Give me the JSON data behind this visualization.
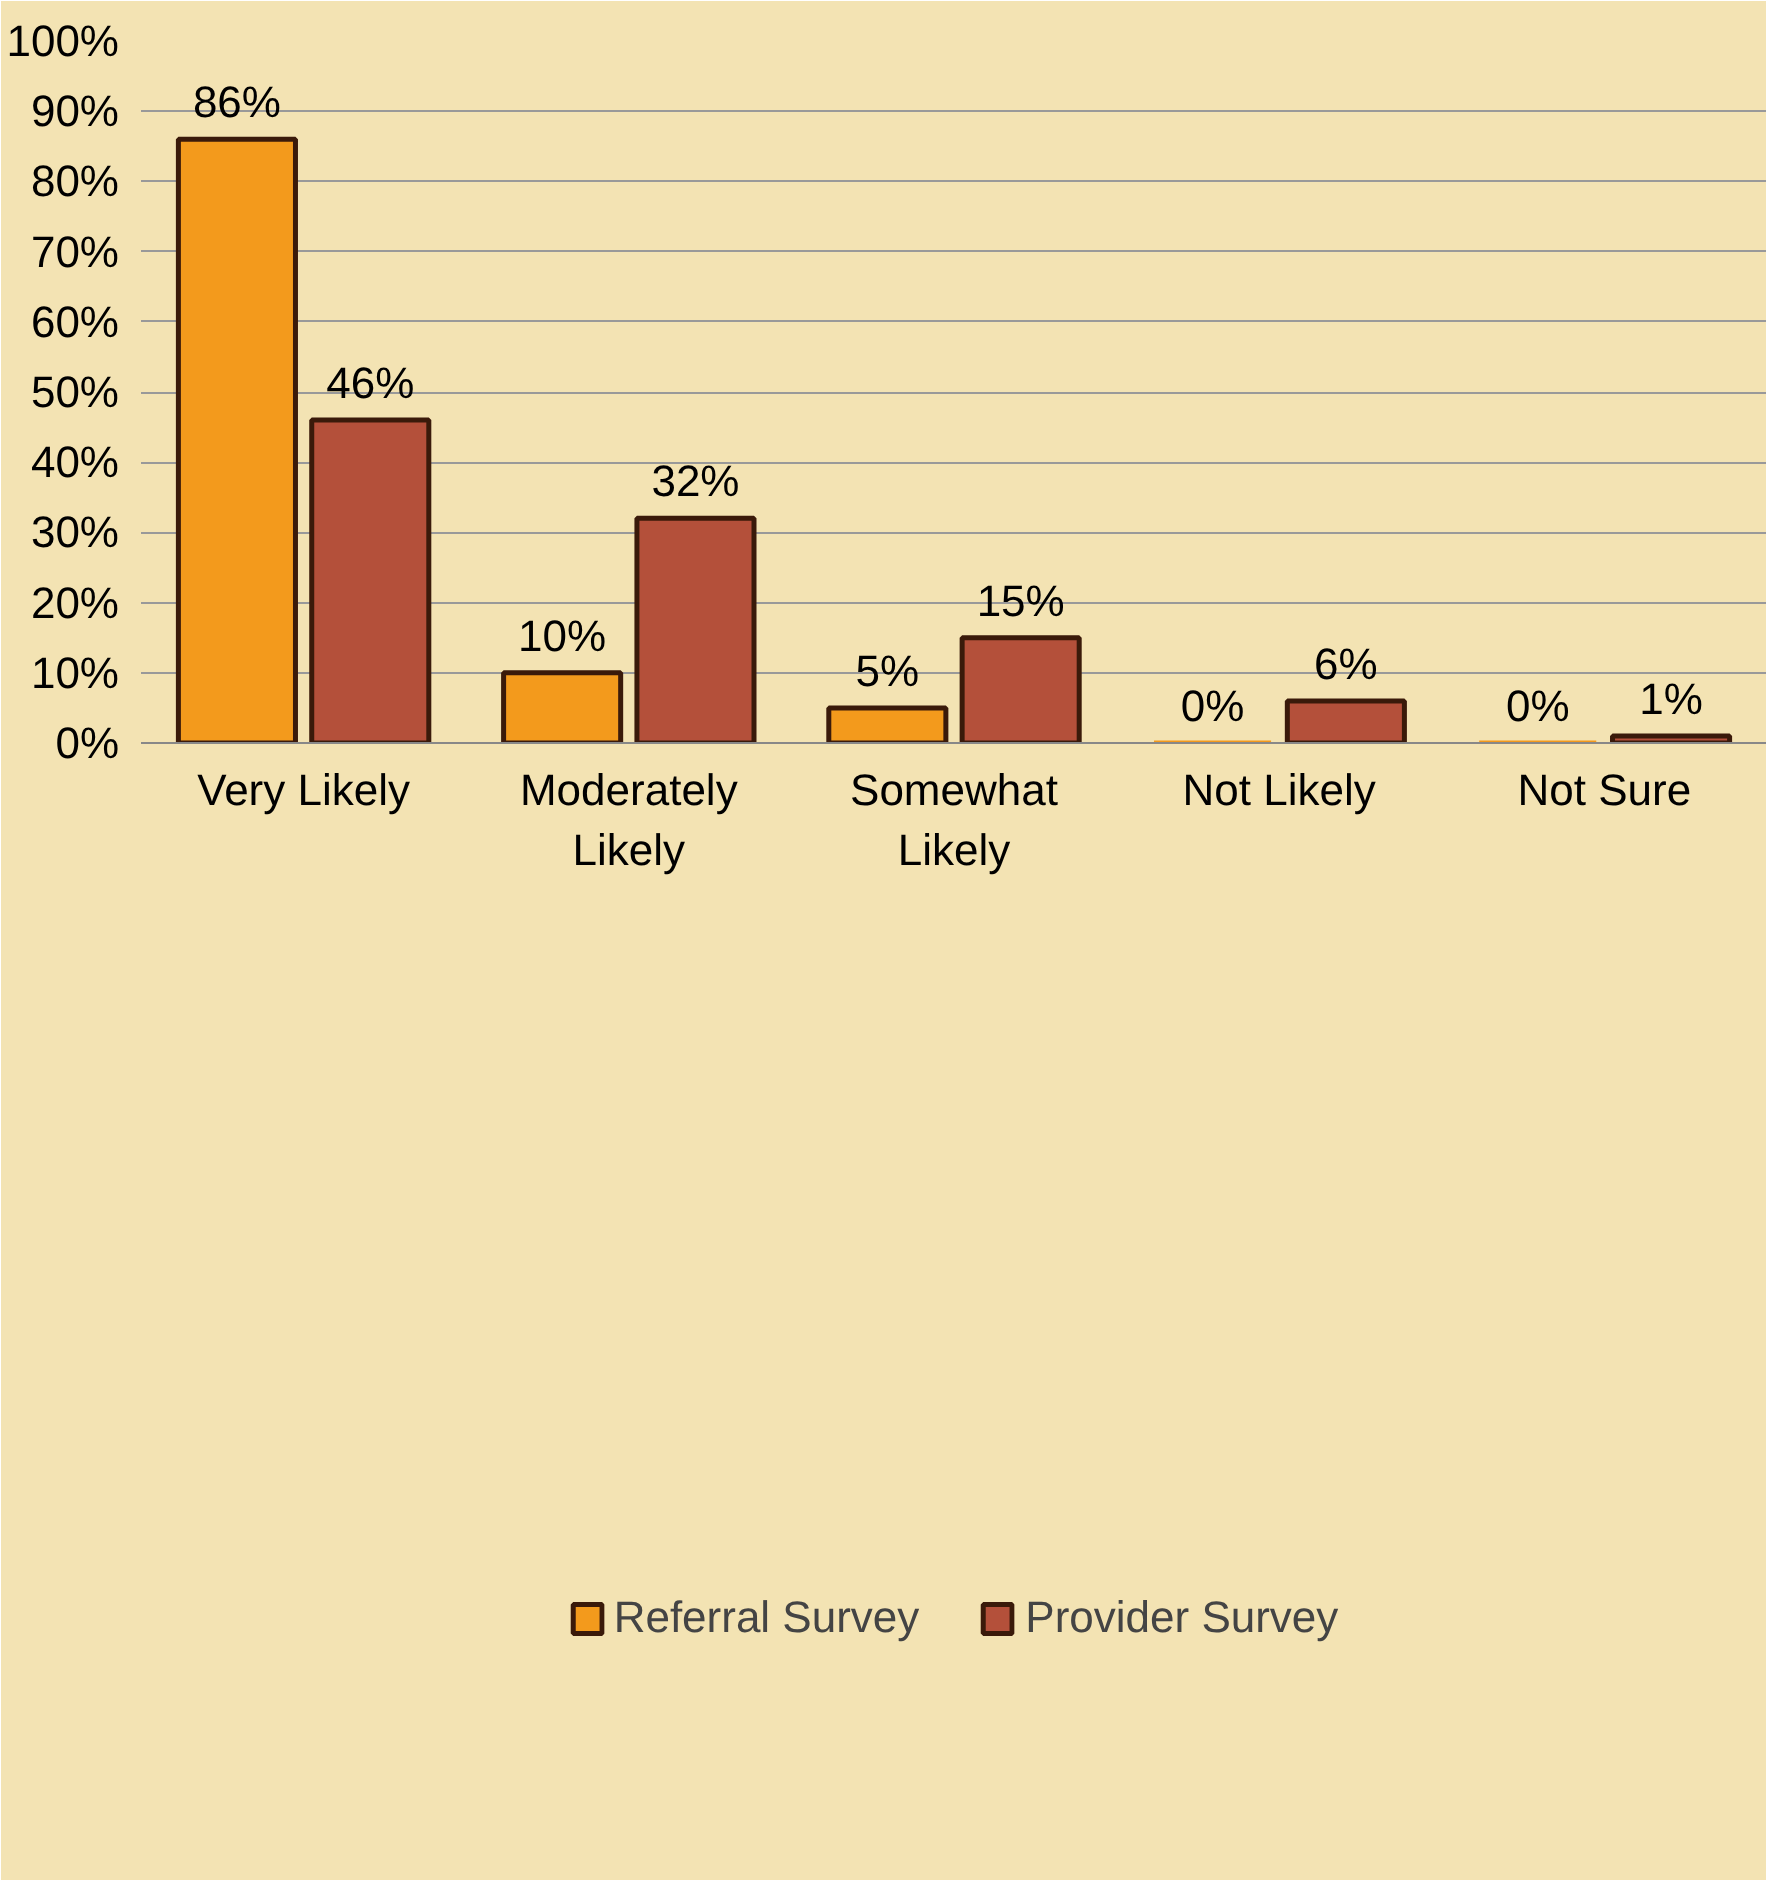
{
  "chart_data": {
    "type": "bar",
    "categories": [
      "Very Likely",
      "Moderately Likely",
      "Somewhat Likely",
      "Not Likely",
      "Not Sure"
    ],
    "series": [
      {
        "name": "Referral Survey",
        "color": "#f39a1c",
        "values": [
          86,
          10,
          5,
          0,
          0
        ],
        "value_labels": [
          "86%",
          "10%",
          "5%",
          "0%",
          "0%"
        ]
      },
      {
        "name": "Provider Survey",
        "color": "#b4503a",
        "values": [
          46,
          32,
          15,
          6,
          1
        ],
        "value_labels": [
          "46%",
          "32%",
          "15%",
          "6%",
          "1%"
        ]
      }
    ],
    "ylim": [
      0,
      100
    ],
    "yticks": [
      {
        "value": 0,
        "label": "0%"
      },
      {
        "value": 10,
        "label": "10%"
      },
      {
        "value": 20,
        "label": "20%"
      },
      {
        "value": 30,
        "label": "30%"
      },
      {
        "value": 40,
        "label": "40%"
      },
      {
        "value": 50,
        "label": "50%"
      },
      {
        "value": 60,
        "label": "60%"
      },
      {
        "value": 70,
        "label": "70%"
      },
      {
        "value": 80,
        "label": "80%"
      },
      {
        "value": 90,
        "label": "90%"
      },
      {
        "value": 100,
        "label": "100%"
      }
    ],
    "grid": "y",
    "legend": "bottom"
  }
}
